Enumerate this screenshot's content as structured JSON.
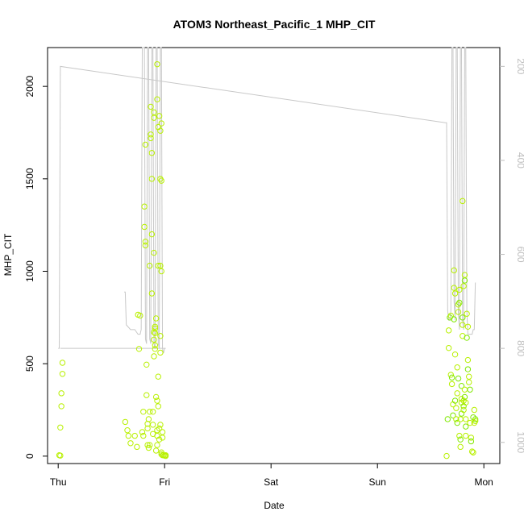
{
  "chart_data": {
    "type": "scatter",
    "title": "ATOM3 Northeast_Pacific_1 MHP_CIT",
    "xlabel": "Date",
    "ylabel": "MHP_CIT",
    "x_tick_labels": [
      "Thu",
      "Fri",
      "Sat",
      "Sun",
      "Mon"
    ],
    "x_range_days": [
      -0.1,
      4.15
    ],
    "ylim": [
      -40,
      2210
    ],
    "y_ticks": [
      0,
      500,
      1000,
      1500,
      2000
    ],
    "y2_ticks": [
      200,
      400,
      600,
      800,
      1000
    ],
    "y2_lim": [
      1045,
      160
    ],
    "colors": {
      "points": "#b8f000",
      "points_alt": "#7fe800",
      "depth_line": "#c8c8c8",
      "axis": "#000000",
      "secondary_axis": "#bdbdbd"
    },
    "series": [
      {
        "kind": "points",
        "values": [
          [
            0.01,
            5
          ],
          [
            0.02,
            3
          ],
          [
            0.02,
            155
          ],
          [
            0.03,
            270
          ],
          [
            0.03,
            340
          ],
          [
            0.04,
            445
          ],
          [
            0.04,
            505
          ],
          [
            0.63,
            185
          ],
          [
            0.65,
            140
          ],
          [
            0.66,
            110
          ],
          [
            0.68,
            70
          ],
          [
            0.72,
            110
          ],
          [
            0.74,
            50
          ],
          [
            0.76,
            580
          ],
          [
            0.75,
            765
          ],
          [
            0.77,
            760
          ],
          [
            0.79,
            130
          ],
          [
            0.8,
            240
          ],
          [
            0.8,
            110
          ],
          [
            0.81,
            1240
          ],
          [
            0.81,
            1350
          ],
          [
            0.82,
            1140
          ],
          [
            0.82,
            1160
          ],
          [
            0.82,
            1685
          ],
          [
            0.83,
            495
          ],
          [
            0.83,
            330
          ],
          [
            0.84,
            150
          ],
          [
            0.84,
            175
          ],
          [
            0.84,
            60
          ],
          [
            0.85,
            200
          ],
          [
            0.85,
            45
          ],
          [
            0.86,
            240
          ],
          [
            0.86,
            60
          ],
          [
            0.86,
            1030
          ],
          [
            0.87,
            1720
          ],
          [
            0.87,
            1740
          ],
          [
            0.87,
            1890
          ],
          [
            0.88,
            880
          ],
          [
            0.88,
            1200
          ],
          [
            0.88,
            1500
          ],
          [
            0.88,
            1640
          ],
          [
            0.89,
            240
          ],
          [
            0.89,
            120
          ],
          [
            0.89,
            170
          ],
          [
            0.9,
            1100
          ],
          [
            0.9,
            1860
          ],
          [
            0.9,
            1830
          ],
          [
            0.9,
            540
          ],
          [
            0.9,
            630
          ],
          [
            0.9,
            670
          ],
          [
            0.91,
            665
          ],
          [
            0.91,
            600
          ],
          [
            0.91,
            580
          ],
          [
            0.91,
            700
          ],
          [
            0.91,
            690
          ],
          [
            0.92,
            745
          ],
          [
            0.92,
            320
          ],
          [
            0.92,
            30
          ],
          [
            0.93,
            300
          ],
          [
            0.93,
            60
          ],
          [
            0.93,
            110
          ],
          [
            0.93,
            140
          ],
          [
            0.93,
            2120
          ],
          [
            0.93,
            1930
          ],
          [
            0.94,
            1780
          ],
          [
            0.94,
            1030
          ],
          [
            0.94,
            430
          ],
          [
            0.94,
            270
          ],
          [
            0.95,
            90
          ],
          [
            0.95,
            150
          ],
          [
            0.95,
            1840
          ],
          [
            0.96,
            1760
          ],
          [
            0.96,
            1500
          ],
          [
            0.96,
            1030
          ],
          [
            0.96,
            560
          ],
          [
            0.96,
            650
          ],
          [
            0.96,
            170
          ],
          [
            0.97,
            1000
          ],
          [
            0.97,
            1800
          ],
          [
            0.97,
            1490
          ],
          [
            0.97,
            20
          ],
          [
            0.97,
            10
          ],
          [
            0.98,
            100
          ],
          [
            0.98,
            130
          ],
          [
            0.98,
            5
          ],
          [
            0.99,
            5
          ],
          [
            1.0,
            3
          ],
          [
            1.01,
            5
          ],
          [
            1.01,
            1
          ],
          [
            3.65,
            1
          ],
          [
            3.66,
            200
          ],
          [
            3.67,
            585
          ],
          [
            3.67,
            680
          ],
          [
            3.68,
            750
          ],
          [
            3.69,
            760
          ],
          [
            3.69,
            440
          ],
          [
            3.7,
            425
          ],
          [
            3.7,
            390
          ],
          [
            3.71,
            280
          ],
          [
            3.71,
            220
          ],
          [
            3.72,
            910
          ],
          [
            3.72,
            1005
          ],
          [
            3.72,
            740
          ],
          [
            3.73,
            880
          ],
          [
            3.73,
            550
          ],
          [
            3.73,
            300
          ],
          [
            3.74,
            260
          ],
          [
            3.74,
            200
          ],
          [
            3.75,
            180
          ],
          [
            3.75,
            340
          ],
          [
            3.75,
            480
          ],
          [
            3.76,
            420
          ],
          [
            3.76,
            780
          ],
          [
            3.76,
            820
          ],
          [
            3.77,
            830
          ],
          [
            3.77,
            900
          ],
          [
            3.77,
            110
          ],
          [
            3.78,
            90
          ],
          [
            3.78,
            50
          ],
          [
            3.78,
            200
          ],
          [
            3.79,
            230
          ],
          [
            3.79,
            290
          ],
          [
            3.79,
            310
          ],
          [
            3.79,
            380
          ],
          [
            3.8,
            650
          ],
          [
            3.8,
            710
          ],
          [
            3.8,
            750
          ],
          [
            3.8,
            1380
          ],
          [
            3.81,
            300
          ],
          [
            3.81,
            270
          ],
          [
            3.81,
            250
          ],
          [
            3.81,
            920
          ],
          [
            3.82,
            950
          ],
          [
            3.82,
            980
          ],
          [
            3.82,
            360
          ],
          [
            3.82,
            320
          ],
          [
            3.83,
            290
          ],
          [
            3.83,
            200
          ],
          [
            3.83,
            160
          ],
          [
            3.83,
            110
          ],
          [
            3.84,
            770
          ],
          [
            3.84,
            640
          ],
          [
            3.85,
            700
          ],
          [
            3.85,
            520
          ],
          [
            3.85,
            470
          ],
          [
            3.86,
            430
          ],
          [
            3.86,
            400
          ],
          [
            3.87,
            360
          ],
          [
            3.87,
            180
          ],
          [
            3.88,
            100
          ],
          [
            3.88,
            80
          ],
          [
            3.89,
            25
          ],
          [
            3.9,
            20
          ],
          [
            3.9,
            210
          ],
          [
            3.91,
            180
          ],
          [
            3.91,
            250
          ],
          [
            3.92,
            200
          ],
          [
            3.92,
            190
          ]
        ]
      },
      {
        "kind": "depth_line",
        "axis": "secondary",
        "values": [
          [
            0.0,
            800
          ],
          [
            0.01,
            800
          ],
          [
            0.02,
            200
          ],
          [
            0.02,
            200
          ],
          [
            3.64,
            320
          ],
          [
            3.65,
            320
          ],
          [
            3.66,
            720
          ],
          [
            3.67,
            740
          ],
          [
            3.68,
            740
          ],
          [
            3.69,
            720
          ],
          [
            3.7,
            100
          ],
          [
            3.71,
            100
          ],
          [
            3.72,
            700
          ],
          [
            3.73,
            740
          ],
          [
            3.74,
            100
          ],
          [
            3.75,
            100
          ],
          [
            3.76,
            720
          ],
          [
            3.77,
            760
          ],
          [
            3.78,
            100
          ],
          [
            3.79,
            100
          ],
          [
            3.8,
            740
          ],
          [
            3.81,
            760
          ],
          [
            3.82,
            100
          ],
          [
            3.83,
            100
          ],
          [
            3.84,
            720
          ],
          [
            3.85,
            770
          ],
          [
            3.86,
            770
          ],
          [
            3.87,
            770
          ],
          [
            3.88,
            770
          ],
          [
            3.89,
            770
          ],
          [
            3.9,
            760
          ],
          [
            3.91,
            760
          ],
          [
            3.92,
            660
          ]
        ]
      },
      {
        "kind": "depth_line_fri",
        "axis": "secondary",
        "values": [
          [
            0.62,
            680
          ],
          [
            0.63,
            680
          ],
          [
            0.64,
            750
          ],
          [
            0.68,
            760
          ],
          [
            0.72,
            760
          ],
          [
            0.75,
            770
          ],
          [
            0.76,
            770
          ],
          [
            0.77,
            770
          ],
          [
            0.78,
            760
          ],
          [
            0.79,
            100
          ],
          [
            0.8,
            100
          ],
          [
            0.81,
            100
          ],
          [
            0.82,
            780
          ],
          [
            0.83,
            790
          ],
          [
            0.84,
            100
          ],
          [
            0.85,
            100
          ],
          [
            0.86,
            780
          ],
          [
            0.87,
            790
          ],
          [
            0.88,
            100
          ],
          [
            0.89,
            100
          ],
          [
            0.9,
            790
          ],
          [
            0.91,
            800
          ],
          [
            0.92,
            100
          ],
          [
            0.93,
            100
          ],
          [
            0.94,
            790
          ],
          [
            0.95,
            800
          ],
          [
            0.96,
            100
          ],
          [
            0.97,
            100
          ],
          [
            0.98,
            800
          ],
          [
            0.99,
            810
          ],
          [
            1.0,
            800
          ],
          [
            1.01,
            800
          ]
        ]
      },
      {
        "kind": "depth_line_thu",
        "axis": "secondary",
        "values": [
          [
            0.02,
            800
          ],
          [
            0.5,
            800
          ],
          [
            0.9,
            800
          ],
          [
            1.0,
            800
          ],
          [
            1.01,
            800
          ]
        ]
      }
    ]
  }
}
